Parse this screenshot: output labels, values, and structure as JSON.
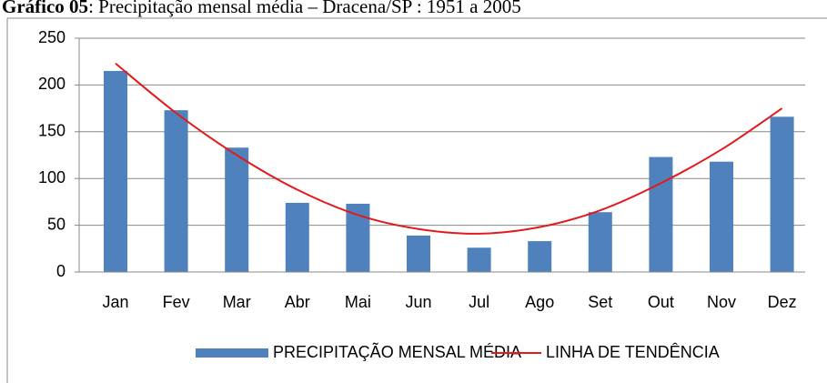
{
  "chart_data": {
    "type": "bar",
    "title_prefix": "Gráfico 05",
    "title": ": Precipitação mensal média – Dracena/SP : 1951 a 2005",
    "categories": [
      "Jan",
      "Fev",
      "Mar",
      "Abr",
      "Mai",
      "Jun",
      "Jul",
      "Ago",
      "Set",
      "Out",
      "Nov",
      "Dez"
    ],
    "series": [
      {
        "name": "PRECIPITAÇÃO MENSAL MÉDIA",
        "color": "#4f81bd",
        "type": "bar",
        "values": [
          215,
          173,
          133,
          74,
          73,
          39,
          26,
          33,
          64,
          123,
          118,
          166
        ]
      },
      {
        "name": "LINHA DE TENDÊNCIA",
        "color": "#e31a1c",
        "type": "line",
        "values": [
          223,
          170,
          125,
          88,
          61,
          46,
          41,
          48,
          66,
          95,
          131,
          175
        ]
      }
    ],
    "ylim": [
      0,
      250
    ],
    "yticks": [
      0,
      50,
      100,
      150,
      200,
      250
    ],
    "grid": true,
    "legend": "bottom"
  }
}
